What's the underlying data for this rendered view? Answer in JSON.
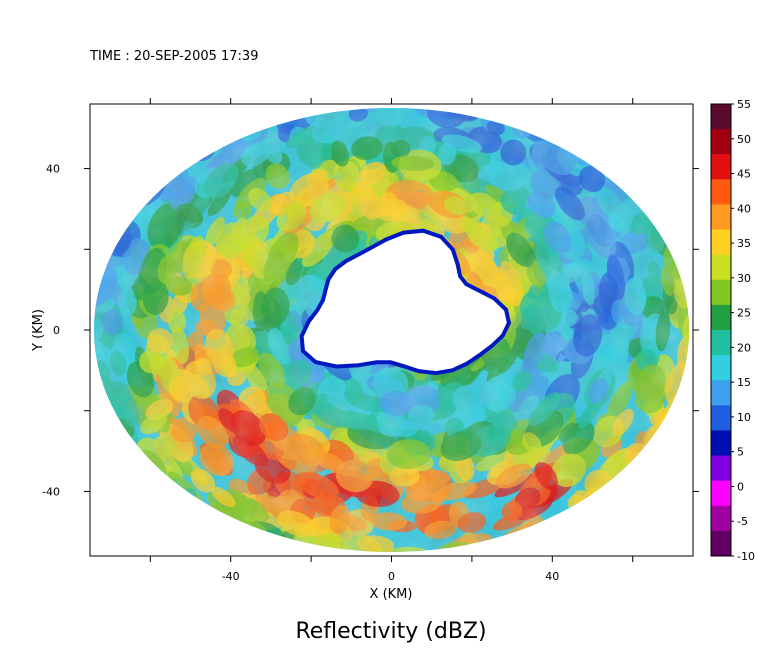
{
  "time_label": "TIME : 20-SEP-2005 17:39",
  "chart_data": {
    "type": "heatmap",
    "title": "Reflectivity (dBZ)",
    "xlabel": "X (KM)",
    "ylabel": "Y (KM)",
    "xlim": [
      -75,
      75
    ],
    "ylim": [
      -56,
      56
    ],
    "x_ticks": [
      -40,
      0,
      40
    ],
    "y_ticks": [
      -40,
      0,
      40
    ],
    "colorbar": {
      "min": -10,
      "max": 55,
      "ticks": [
        "55",
        "50",
        "45",
        "40",
        "35",
        "30",
        "25",
        "20",
        "15",
        "10",
        "5",
        "0",
        "-5",
        "-10"
      ],
      "colors": [
        "#5a0a2a",
        "#a00010",
        "#e01010",
        "#ff5a10",
        "#ff9a20",
        "#ffd020",
        "#c8e020",
        "#80c820",
        "#20a040",
        "#20c0a0",
        "#30d0e0",
        "#40a0f0",
        "#2060e0",
        "#0010b0",
        "#8000e0",
        "#ff00ff",
        "#a000a0",
        "#600060"
      ]
    },
    "domain": {
      "center": [
        0,
        0
      ],
      "radius_x_km": 74,
      "radius_y_km": 55,
      "eye": {
        "center_x_km": 3,
        "center_y_km": 5,
        "radius_km": 17
      }
    }
  }
}
